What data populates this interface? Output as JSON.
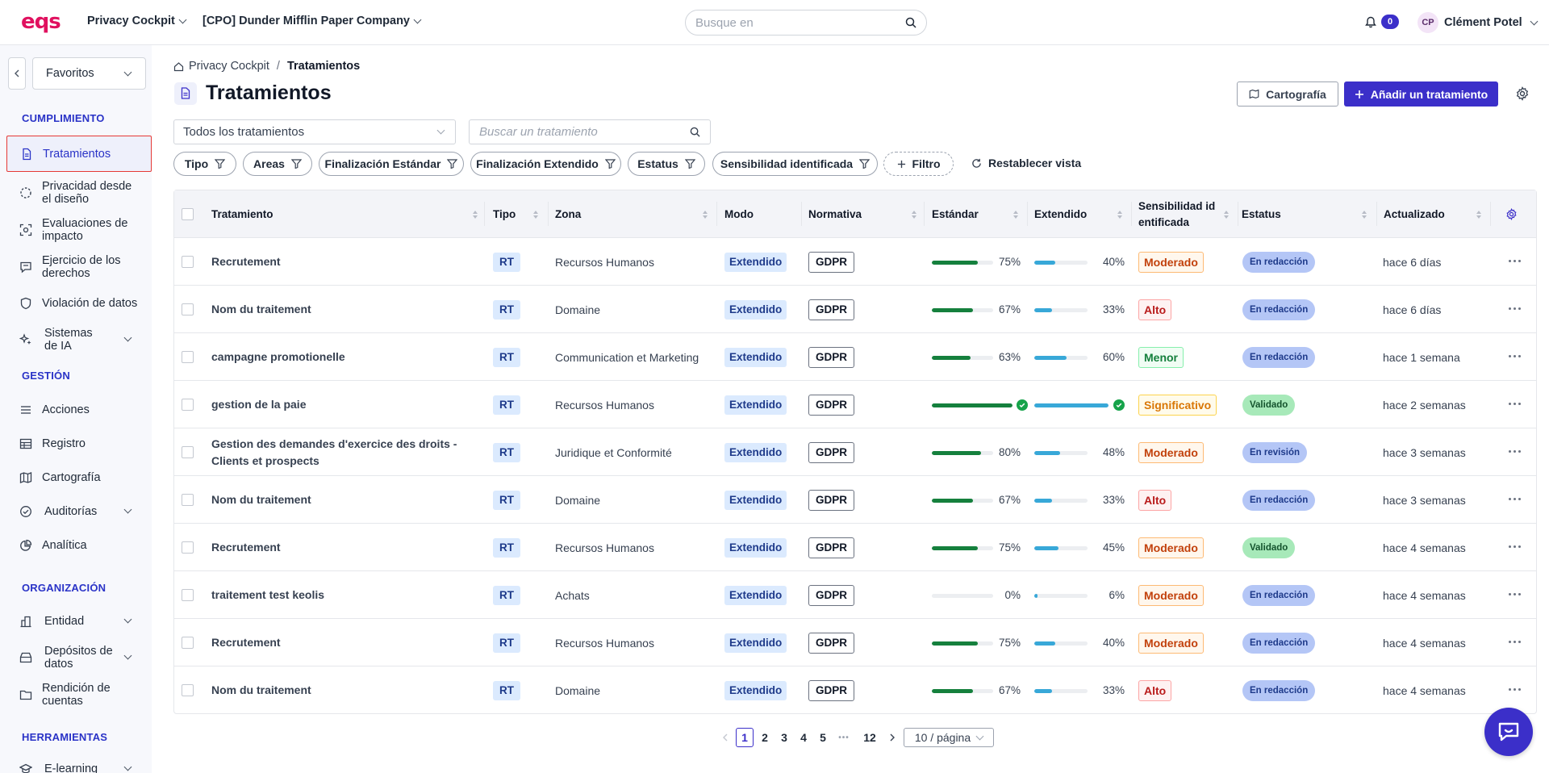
{
  "header": {
    "logo": "eqs",
    "app_selector": "Privacy Cockpit",
    "company_selector": "[CPO] Dunder Mifflin Paper Company",
    "search_placeholder": "Busque en",
    "notification_count": "0",
    "user_initials": "CP",
    "user_name": "Clément Potel"
  },
  "sidebar": {
    "favorites_label": "Favoritos",
    "sections": {
      "cumplimiento": "CUMPLIMIENTO",
      "gestion": "GESTIÓN",
      "organizacion": "ORGANIZACIÓN",
      "herramientas": "HERRAMIENTAS"
    },
    "items": {
      "tratamientos": "Tratamientos",
      "privacidad": "Privacidad desde el diseño",
      "evaluaciones": "Evaluaciones de impacto",
      "ejercicio": "Ejercicio de los derechos",
      "violacion": "Violación de datos",
      "sistemas": "Sistemas de IA",
      "acciones": "Acciones",
      "registro": "Registro",
      "cartografia": "Cartografía",
      "auditorias": "Auditorías",
      "analitica": "Analítica",
      "entidad": "Entidad",
      "depositos": "Depósitos de datos",
      "rendicion": "Rendición de cuentas",
      "elearning": "E-learning"
    }
  },
  "breadcrumb": {
    "root": "Privacy Cockpit",
    "separator": "/",
    "current": "Tratamientos"
  },
  "page": {
    "title": "Tratamientos",
    "cartografia_button": "Cartografía",
    "add_button": "Añadir un tratamiento",
    "view_select": "Todos los tratamientos",
    "search_placeholder": "Buscar un tratamiento"
  },
  "filters": {
    "tipo": "Tipo",
    "areas": "Areas",
    "fin_estandar": "Finalización Estándar",
    "fin_extendido": "Finalización Extendido",
    "estatus": "Estatus",
    "sensibilidad": "Sensibilidad identificada",
    "add_filter": "Filtro",
    "reset": "Restablecer vista"
  },
  "table": {
    "columns": {
      "tratamiento": "Tratamiento",
      "tipo": "Tipo",
      "zona": "Zona",
      "modo": "Modo",
      "normativa": "Normativa",
      "estandar": "Estándar",
      "extendido": "Extendido",
      "sensibilidad": "Sensibilidad id entificada",
      "estatus": "Estatus",
      "actualizado": "Actualizado"
    },
    "rows": [
      {
        "name": "Recrutement",
        "tipo": "RT",
        "zona": "Recursos Humanos",
        "modo": "Extendido",
        "normativa": "GDPR",
        "std": 75,
        "std_label": "75%",
        "ext": 40,
        "ext_label": "40%",
        "sens": "Moderado",
        "status": "En redacción",
        "updated": "hace 6 días"
      },
      {
        "name": "Nom du traitement",
        "tipo": "RT",
        "zona": "Domaine",
        "modo": "Extendido",
        "normativa": "GDPR",
        "std": 67,
        "std_label": "67%",
        "ext": 33,
        "ext_label": "33%",
        "sens": "Alto",
        "status": "En redacción",
        "updated": "hace 6 días"
      },
      {
        "name": "campagne promotionelle",
        "tipo": "RT",
        "zona": "Communication et Marketing",
        "modo": "Extendido",
        "normativa": "GDPR",
        "std": 63,
        "std_label": "63%",
        "ext": 60,
        "ext_label": "60%",
        "sens": "Menor",
        "status": "En redacción",
        "updated": "hace 1 semana"
      },
      {
        "name": "gestion de la paie",
        "tipo": "RT",
        "zona": "Recursos Humanos",
        "modo": "Extendido",
        "normativa": "GDPR",
        "std": 100,
        "std_label": "",
        "ext": 100,
        "ext_label": "",
        "sens": "Significativo",
        "status": "Validado",
        "updated": "hace 2 semanas"
      },
      {
        "name": "Gestion des demandes d'exercice des droits - Clients et prospects",
        "tipo": "RT",
        "zona": "Juridique et Conformité",
        "modo": "Extendido",
        "normativa": "GDPR",
        "std": 80,
        "std_label": "80%",
        "ext": 48,
        "ext_label": "48%",
        "sens": "Moderado",
        "status": "En revisión",
        "updated": "hace 3 semanas"
      },
      {
        "name": "Nom du traitement",
        "tipo": "RT",
        "zona": "Domaine",
        "modo": "Extendido",
        "normativa": "GDPR",
        "std": 67,
        "std_label": "67%",
        "ext": 33,
        "ext_label": "33%",
        "sens": "Alto",
        "status": "En redacción",
        "updated": "hace 3 semanas"
      },
      {
        "name": "Recrutement",
        "tipo": "RT",
        "zona": "Recursos Humanos",
        "modo": "Extendido",
        "normativa": "GDPR",
        "std": 75,
        "std_label": "75%",
        "ext": 45,
        "ext_label": "45%",
        "sens": "Moderado",
        "status": "Validado",
        "updated": "hace 4 semanas"
      },
      {
        "name": "traitement test keolis",
        "tipo": "RT",
        "zona": "Achats",
        "modo": "Extendido",
        "normativa": "GDPR",
        "std": 0,
        "std_label": "0%",
        "ext": 6,
        "ext_label": "6%",
        "sens": "Moderado",
        "status": "En redacción",
        "updated": "hace 4 semanas"
      },
      {
        "name": "Recrutement",
        "tipo": "RT",
        "zona": "Recursos Humanos",
        "modo": "Extendido",
        "normativa": "GDPR",
        "std": 75,
        "std_label": "75%",
        "ext": 40,
        "ext_label": "40%",
        "sens": "Moderado",
        "status": "En redacción",
        "updated": "hace 4 semanas"
      },
      {
        "name": "Nom du traitement",
        "tipo": "RT",
        "zona": "Domaine",
        "modo": "Extendido",
        "normativa": "GDPR",
        "std": 67,
        "std_label": "67%",
        "ext": 33,
        "ext_label": "33%",
        "sens": "Alto",
        "status": "En redacción",
        "updated": "hace 4 semanas"
      }
    ]
  },
  "pagination": {
    "pages": [
      "1",
      "2",
      "3",
      "4",
      "5"
    ],
    "ellipsis": "•••",
    "last": "12",
    "current": "1",
    "page_size": "10 / página"
  },
  "colors": {
    "primary": "#3b2fc9",
    "logo": "#e0115f",
    "std_bar": "#15803d",
    "ext_bar": "#38a8d8",
    "sens": {
      "Moderado": {
        "bg": "#fff7ed",
        "border": "#fdba74",
        "text": "#c2410c"
      },
      "Alto": {
        "bg": "#fef2f2",
        "border": "#fca5a5",
        "text": "#b91c1c"
      },
      "Menor": {
        "bg": "#f0fdf4",
        "border": "#86efac",
        "text": "#15803d"
      },
      "Significativo": {
        "bg": "#fffbeb",
        "border": "#fcd34d",
        "text": "#d97706"
      }
    },
    "status": {
      "En redacción": {
        "bg": "#b4c6f6",
        "text": "#1e3a8a"
      },
      "En revisión": {
        "bg": "#b4c6f6",
        "text": "#1e3a8a"
      },
      "Validado": {
        "bg": "#a7e9b9",
        "text": "#14532d"
      }
    }
  }
}
